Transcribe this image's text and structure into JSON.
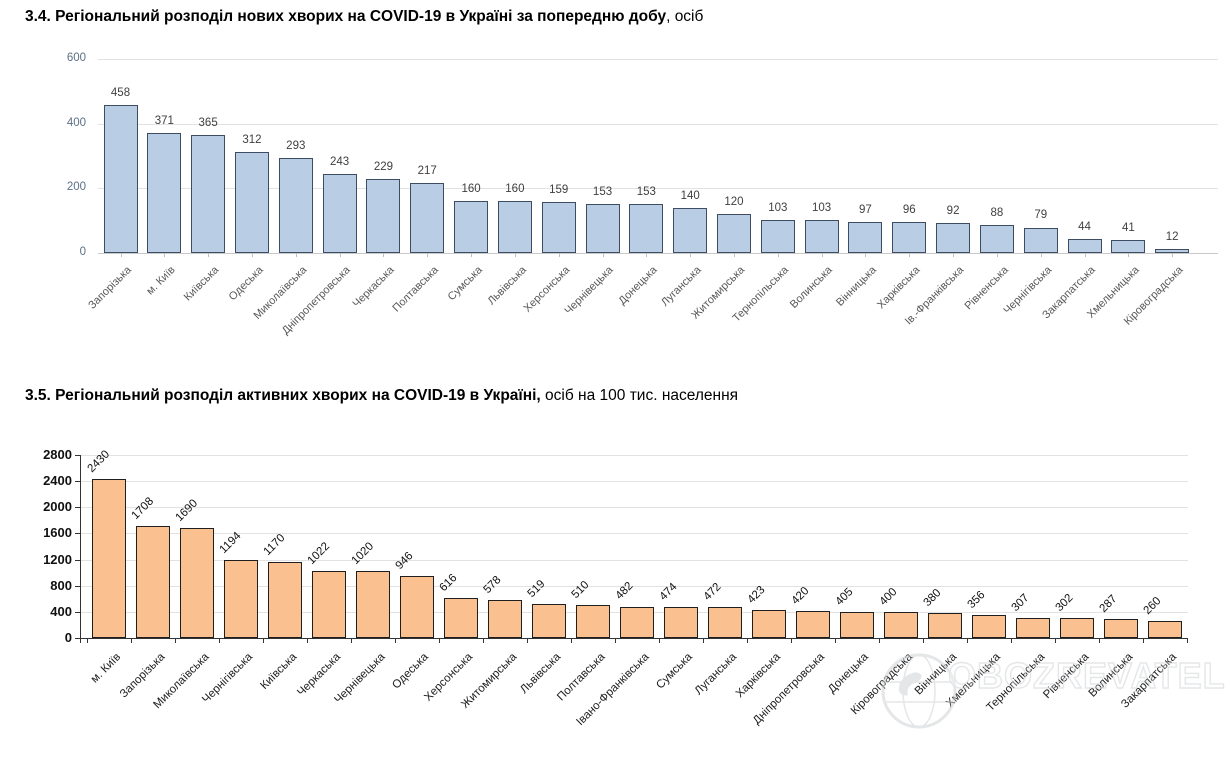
{
  "sections": [
    {
      "title_bold": "3.4.  Регіональний розподіл нових хворих на COVID-19 в Україні за попередню добу",
      "title_suffix": ", осіб"
    },
    {
      "title_bold": "3.5.  Регіональний розподіл активних хворих на COVID-19 в Україні,",
      "title_suffix": " осіб на 100 тис. населення"
    }
  ],
  "watermark": {
    "text": "OBOZREVATEL",
    "icon": "globe-icon",
    "color": "#cfd2d6"
  },
  "chart_data": [
    {
      "type": "bar",
      "title": "Регіональний розподіл нових хворих на COVID-19 в Україні за попередню добу, осіб",
      "categories": [
        "Запорізька",
        "м. Київ",
        "Київська",
        "Одеська",
        "Миколаївська",
        "Дніпропетровська",
        "Черкаська",
        "Полтавська",
        "Сумська",
        "Львівська",
        "Херсонська",
        "Чернівецька",
        "Донецька",
        "Луганська",
        "Житомирська",
        "Тернопільська",
        "Волинська",
        "Вінницька",
        "Харківська",
        "Ів.-Франківська",
        "Рівненська",
        "Чернігівська",
        "Закарпатська",
        "Хмельницька",
        "Кіровоградська"
      ],
      "values": [
        458,
        371,
        365,
        312,
        293,
        243,
        229,
        217,
        160,
        160,
        159,
        153,
        153,
        140,
        120,
        103,
        103,
        97,
        96,
        92,
        88,
        79,
        44,
        41,
        12
      ],
      "xlabel": "",
      "ylabel": "",
      "ylim": [
        0,
        600
      ],
      "yticks": [
        0,
        200,
        400,
        600
      ],
      "grid": true,
      "legend": "none",
      "bar_color": "#b9cde4",
      "bar_border_color": "#3d4c60",
      "value_label_color": "#3f3f3f",
      "ytick_color": "#5b6f85",
      "xtick_color": "#595959",
      "value_label_rotation": 0
    },
    {
      "type": "bar",
      "title": "Регіональний розподіл активних хворих на COVID-19 в Україні, осіб на 100 тис. населення",
      "categories": [
        "м. Київ",
        "Запорізька",
        "Миколаївська",
        "Чернігівська",
        "Київська",
        "Черкаська",
        "Чернівецька",
        "Одеська",
        "Херсонська",
        "Житомирська",
        "Львівська",
        "Полтавська",
        "Івано-Франківська",
        "Сумська",
        "Луганська",
        "Харківська",
        "Дніпропетровська",
        "Донецька",
        "Кіровоградська",
        "Вінницька",
        "Хмельницька",
        "Тернопільська",
        "Рівненська",
        "Волинська",
        "Закарпатська"
      ],
      "values": [
        2430,
        1708,
        1690,
        1194,
        1170,
        1022,
        1020,
        946,
        616,
        578,
        519,
        510,
        482,
        474,
        472,
        423,
        420,
        405,
        400,
        380,
        356,
        307,
        302,
        287,
        260
      ],
      "xlabel": "",
      "ylabel": "",
      "ylim": [
        0,
        2800
      ],
      "yticks": [
        0,
        400,
        800,
        1200,
        1600,
        2000,
        2400,
        2800
      ],
      "grid": true,
      "legend": "none",
      "bar_color": "#fac08f",
      "bar_border_color": "#1f1f1f",
      "value_label_color": "#111111",
      "ytick_color": "#111111",
      "xtick_color": "#1d1d1d",
      "value_label_rotation": -45
    }
  ]
}
